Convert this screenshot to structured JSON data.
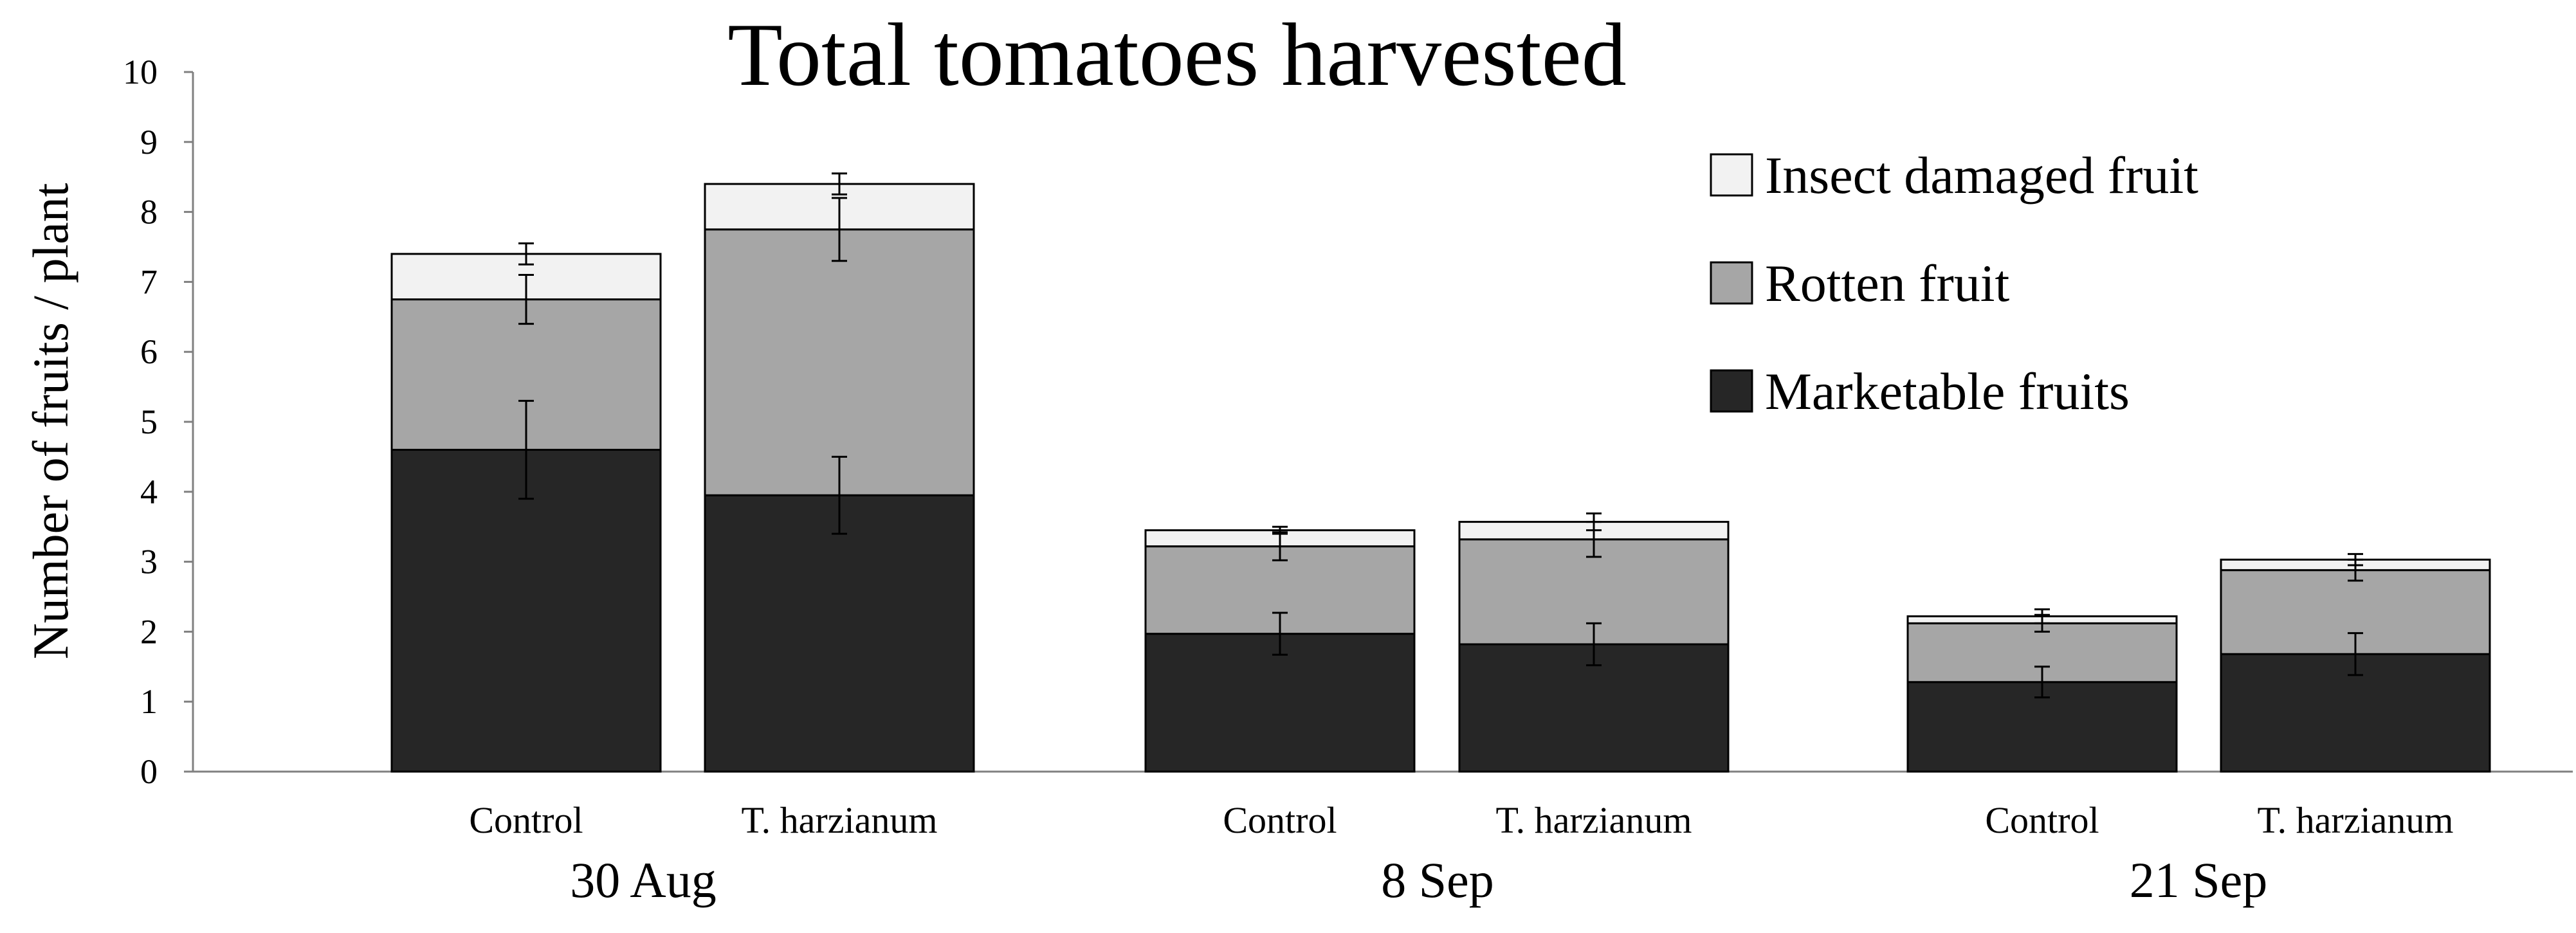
{
  "chart_data": {
    "type": "bar",
    "stacked": true,
    "title": "Total tomatoes harvested",
    "ylabel": "Number of fruits / plant",
    "xlabel": "",
    "ylim": [
      0,
      10
    ],
    "yticks": [
      "0",
      "1",
      "2",
      "3",
      "4",
      "5",
      "6",
      "7",
      "8",
      "9",
      "10"
    ],
    "groups": [
      "30 Aug",
      "8 Sep",
      "21 Sep"
    ],
    "categories": [
      "Control",
      "T. harzianum",
      "Control",
      "T. harzianum",
      "Control",
      "T. harzianum"
    ],
    "group_index": [
      0,
      0,
      1,
      1,
      2,
      2
    ],
    "legend_placement": "top-right",
    "grid": false,
    "series": [
      {
        "name": "Marketable fruits",
        "color": "#262626",
        "values": [
          4.6,
          3.95,
          1.97,
          1.82,
          1.28,
          1.68
        ],
        "errors": [
          0.7,
          0.55,
          0.3,
          0.3,
          0.22,
          0.3
        ]
      },
      {
        "name": "Rotten fruit",
        "color": "#a6a6a6",
        "values": [
          2.15,
          3.8,
          1.25,
          1.5,
          0.84,
          1.2
        ],
        "errors": [
          0.35,
          0.45,
          0.2,
          0.25,
          0.12,
          0.15
        ]
      },
      {
        "name": "Insect damaged fruit",
        "color": "#f2f2f2",
        "values": [
          0.65,
          0.65,
          0.23,
          0.25,
          0.1,
          0.15
        ],
        "errors": [
          0.15,
          0.15,
          0.05,
          0.12,
          0.1,
          0.08
        ]
      }
    ]
  }
}
